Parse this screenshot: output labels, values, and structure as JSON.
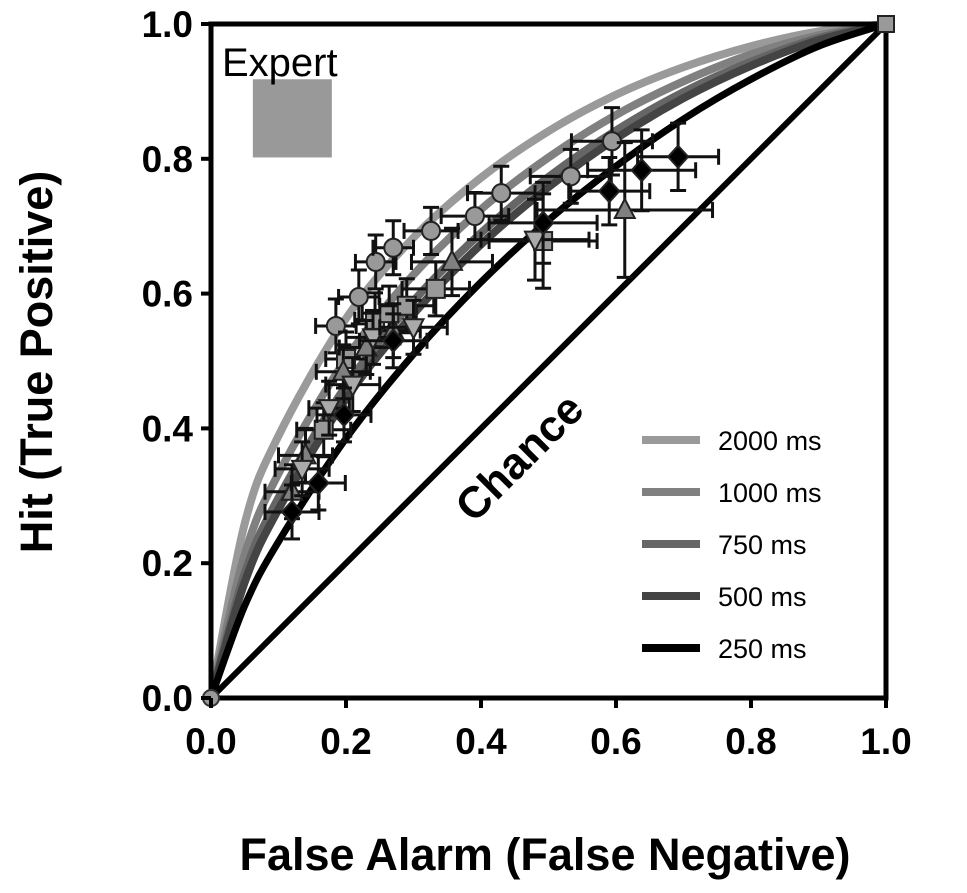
{
  "chart_data": {
    "type": "line",
    "xlabel": "False Alarm (False Negative)",
    "ylabel": "Hit (True Positive)",
    "xlim": [
      0,
      1
    ],
    "ylim": [
      0,
      1
    ],
    "x_ticks": [
      "0.0",
      "0.2",
      "0.4",
      "0.6",
      "0.8",
      "1.0"
    ],
    "y_ticks": [
      "0.0",
      "0.2",
      "0.4",
      "0.6",
      "0.8",
      "1.0"
    ],
    "grid": false,
    "legend_position": "bottom-right",
    "annotations": {
      "expert_label": "Expert",
      "expert_region": {
        "x": [
          0.062,
          0.179
        ],
        "y": [
          0.802,
          0.918
        ],
        "color": "#999999"
      },
      "chance_label": "Chance"
    },
    "curve_x": [
      0,
      0.05,
      0.1,
      0.2,
      0.3,
      0.4,
      0.5,
      0.6,
      0.7,
      0.8,
      0.9,
      1
    ],
    "series": [
      {
        "name": "2000 ms",
        "color": "#9a9a9a",
        "y": [
          0,
          0.259,
          0.389,
          0.563,
          0.683,
          0.772,
          0.841,
          0.895,
          0.936,
          0.967,
          0.989,
          1
        ]
      },
      {
        "name": "1000 ms",
        "color": "#808080",
        "y": [
          0,
          0.213,
          0.333,
          0.503,
          0.628,
          0.725,
          0.802,
          0.865,
          0.915,
          0.955,
          0.983,
          1
        ]
      },
      {
        "name": "750 ms",
        "color": "#666666",
        "y": [
          0,
          0.185,
          0.297,
          0.463,
          0.589,
          0.69,
          0.773,
          0.842,
          0.899,
          0.944,
          0.979,
          1
        ]
      },
      {
        "name": "500 ms",
        "color": "#444444",
        "y": [
          0,
          0.172,
          0.28,
          0.444,
          0.57,
          0.673,
          0.758,
          0.83,
          0.89,
          0.938,
          0.976,
          1
        ]
      },
      {
        "name": "250 ms",
        "color": "#000000",
        "y": [
          0,
          0.137,
          0.232,
          0.385,
          0.51,
          0.617,
          0.709,
          0.789,
          0.859,
          0.918,
          0.967,
          1
        ]
      }
    ],
    "points": [
      {
        "marker": "circle",
        "fill": "#999999",
        "data": [
          [
            0.185,
            0.552,
            0.03,
            0.04
          ],
          [
            0.219,
            0.595,
            0.03,
            0.04
          ],
          [
            0.244,
            0.647,
            0.03,
            0.04
          ],
          [
            0.27,
            0.668,
            0.03,
            0.04
          ],
          [
            0.326,
            0.693,
            0.04,
            0.035
          ],
          [
            0.391,
            0.715,
            0.05,
            0.035
          ],
          [
            0.43,
            0.749,
            0.05,
            0.04
          ],
          [
            0.533,
            0.774,
            0.06,
            0.04
          ],
          [
            0.594,
            0.826,
            0.06,
            0.05
          ]
        ]
      },
      {
        "marker": "square",
        "fill": "#999999",
        "data": [
          [
            0.167,
            0.398,
            0.04,
            0.04
          ],
          [
            0.2,
            0.503,
            0.03,
            0.04
          ],
          [
            0.243,
            0.561,
            0.03,
            0.04
          ],
          [
            0.264,
            0.571,
            0.04,
            0.04
          ],
          [
            0.29,
            0.582,
            0.04,
            0.04
          ],
          [
            0.333,
            0.607,
            0.05,
            0.04
          ],
          [
            0.492,
            0.678,
            0.08,
            0.07
          ]
        ]
      },
      {
        "marker": "triangle-up",
        "fill": "#808080",
        "data": [
          [
            0.12,
            0.306,
            0.04,
            0.04
          ],
          [
            0.14,
            0.36,
            0.04,
            0.04
          ],
          [
            0.196,
            0.484,
            0.04,
            0.04
          ],
          [
            0.23,
            0.52,
            0.04,
            0.04
          ],
          [
            0.27,
            0.545,
            0.04,
            0.04
          ],
          [
            0.357,
            0.647,
            0.06,
            0.05
          ],
          [
            0.613,
            0.724,
            0.13,
            0.1
          ]
        ]
      },
      {
        "marker": "triangle-down",
        "fill": "#aaaaaa",
        "data": [
          [
            0.135,
            0.34,
            0.04,
            0.04
          ],
          [
            0.175,
            0.43,
            0.03,
            0.04
          ],
          [
            0.21,
            0.465,
            0.04,
            0.04
          ],
          [
            0.24,
            0.535,
            0.04,
            0.04
          ],
          [
            0.3,
            0.55,
            0.05,
            0.04
          ],
          [
            0.48,
            0.68,
            0.08,
            0.06
          ]
        ]
      },
      {
        "marker": "diamond",
        "fill": "#000000",
        "data": [
          [
            0.12,
            0.276,
            0.04,
            0.04
          ],
          [
            0.159,
            0.319,
            0.04,
            0.04
          ],
          [
            0.197,
            0.42,
            0.04,
            0.04
          ],
          [
            0.27,
            0.53,
            0.05,
            0.04
          ],
          [
            0.492,
            0.705,
            0.08,
            0.06
          ],
          [
            0.59,
            0.752,
            0.06,
            0.05
          ],
          [
            0.638,
            0.783,
            0.08,
            0.06
          ],
          [
            0.692,
            0.803,
            0.06,
            0.05
          ]
        ]
      }
    ]
  }
}
